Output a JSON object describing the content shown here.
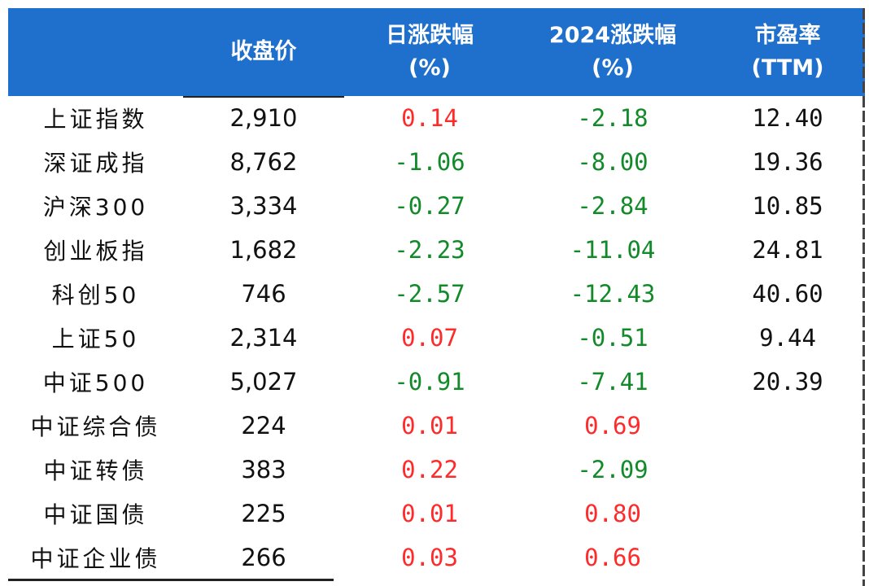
{
  "table": {
    "headers": [
      {
        "line1": "",
        "line2": ""
      },
      {
        "line1": "收盘价",
        "line2": ""
      },
      {
        "line1": "日涨跌幅",
        "line2": "(%)"
      },
      {
        "line1": "2024涨跌幅",
        "line2": "(%)"
      },
      {
        "line1": "市盈率",
        "line2": "(TTM)"
      }
    ],
    "rows": [
      {
        "name": "上证指数",
        "close": "2,910",
        "day": "0.14",
        "ytd": "-2.18",
        "pe": "12.40"
      },
      {
        "name": "深证成指",
        "close": "8,762",
        "day": "-1.06",
        "ytd": "-8.00",
        "pe": "19.36"
      },
      {
        "name": "沪深300",
        "close": "3,334",
        "day": "-0.27",
        "ytd": "-2.84",
        "pe": "10.85"
      },
      {
        "name": "创业板指",
        "close": "1,682",
        "day": "-2.23",
        "ytd": "-11.04",
        "pe": "24.81"
      },
      {
        "name": "科创50",
        "close": "746",
        "day": "-2.57",
        "ytd": "-12.43",
        "pe": "40.60"
      },
      {
        "name": "上证50",
        "close": "2,314",
        "day": "0.07",
        "ytd": "-0.51",
        "pe": "9.44"
      },
      {
        "name": "中证500",
        "close": "5,027",
        "day": "-0.91",
        "ytd": "-7.41",
        "pe": "20.39"
      },
      {
        "name": "中证综合债",
        "close": "224",
        "day": "0.01",
        "ytd": "0.69",
        "pe": ""
      },
      {
        "name": "中证转债",
        "close": "383",
        "day": "0.22",
        "ytd": "-2.09",
        "pe": ""
      },
      {
        "name": "中证国债",
        "close": "225",
        "day": "0.01",
        "ytd": "0.80",
        "pe": ""
      },
      {
        "name": "中证企业债",
        "close": "266",
        "day": "0.03",
        "ytd": "0.66",
        "pe": ""
      }
    ]
  },
  "colors": {
    "header_bg": "#1f6fcc",
    "positive": "#ff2a2a",
    "negative": "#138a2a"
  },
  "chart_data": {
    "type": "table",
    "columns": [
      "",
      "收盘价",
      "日涨跌幅 (%)",
      "2024涨跌幅 (%)",
      "市盈率 (TTM)"
    ],
    "rows": [
      [
        "上证指数",
        2910,
        0.14,
        -2.18,
        12.4
      ],
      [
        "深证成指",
        8762,
        -1.06,
        -8.0,
        19.36
      ],
      [
        "沪深300",
        3334,
        -0.27,
        -2.84,
        10.85
      ],
      [
        "创业板指",
        1682,
        -2.23,
        -11.04,
        24.81
      ],
      [
        "科创50",
        746,
        -2.57,
        -12.43,
        40.6
      ],
      [
        "上证50",
        2314,
        0.07,
        -0.51,
        9.44
      ],
      [
        "中证500",
        5027,
        -0.91,
        -7.41,
        20.39
      ],
      [
        "中证综合债",
        224,
        0.01,
        0.69,
        null
      ],
      [
        "中证转债",
        383,
        0.22,
        -2.09,
        null
      ],
      [
        "中证国债",
        225,
        0.01,
        0.8,
        null
      ],
      [
        "中证企业债",
        266,
        0.03,
        0.66,
        null
      ]
    ]
  }
}
